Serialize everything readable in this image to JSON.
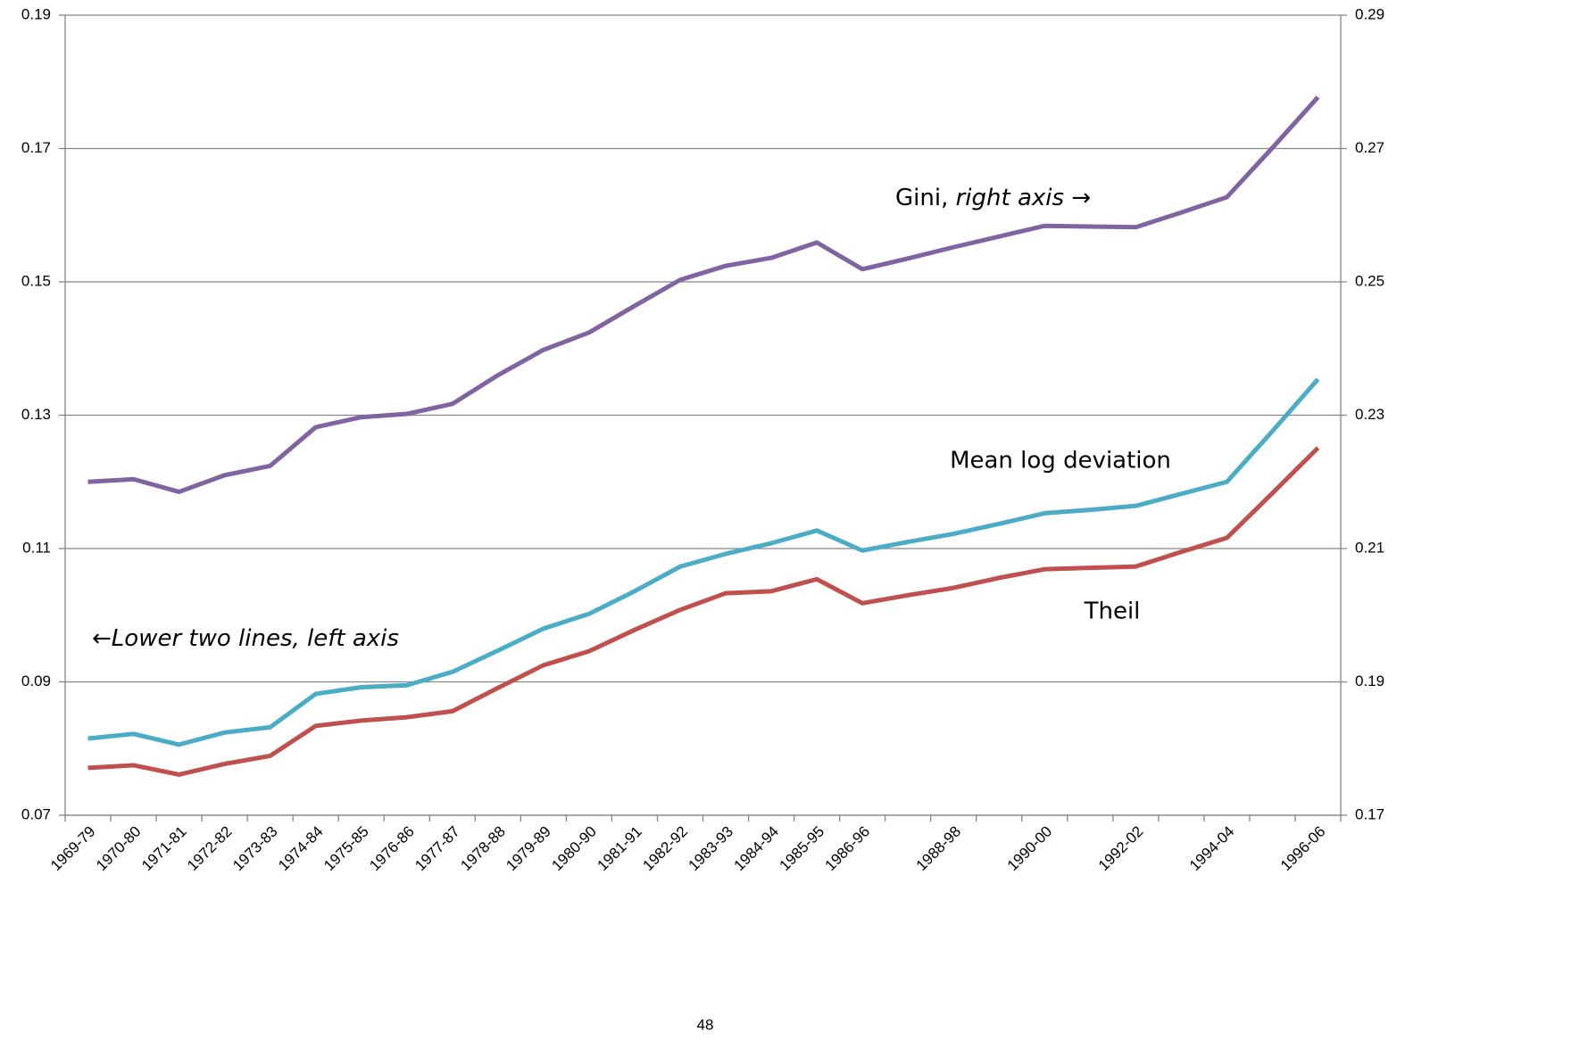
{
  "chart_data": {
    "type": "line",
    "categories": [
      "1969-79",
      "1970-80",
      "1971-81",
      "1972-82",
      "1973-83",
      "1974-84",
      "1975-85",
      "1976-86",
      "1977-87",
      "1978-88",
      "1979-89",
      "1980-90",
      "1981-91",
      "1982-92",
      "1983-93",
      "1984-94",
      "1985-95",
      "1986-96",
      null,
      "1988-98",
      null,
      "1990-00",
      null,
      "1992-02",
      null,
      "1994-04",
      null,
      "1996-06"
    ],
    "series": [
      {
        "name": "Gini",
        "color": "#8064a2",
        "axis": "y2",
        "values": [
          0.22,
          0.2204,
          0.2185,
          0.221,
          0.2224,
          0.2282,
          0.2297,
          0.2302,
          0.2317,
          0.236,
          0.2398,
          0.2424,
          0.2464,
          0.2503,
          0.2524,
          0.2536,
          0.2559,
          0.2519,
          0.2535,
          0.2552,
          0.2568,
          0.2584,
          0.2583,
          0.2582,
          0.2604,
          0.2627,
          0.2701,
          0.2777
        ]
      },
      {
        "name": "Mean log deviation",
        "color": "#4bacc6",
        "values": [
          0.0815,
          0.0822,
          0.0806,
          0.0824,
          0.0832,
          0.0882,
          0.0892,
          0.0895,
          0.0915,
          0.0947,
          0.098,
          0.1002,
          0.1036,
          0.1073,
          0.1092,
          0.1108,
          0.1127,
          0.1097,
          0.111,
          0.1122,
          0.1137,
          0.1153,
          0.1158,
          0.1164,
          0.1182,
          0.12,
          0.1276,
          0.1354
        ]
      },
      {
        "name": "Theil",
        "color": "#c0504d",
        "values": [
          0.0771,
          0.0775,
          0.0761,
          0.0777,
          0.0789,
          0.0834,
          0.0842,
          0.0847,
          0.0856,
          0.0891,
          0.0925,
          0.0946,
          0.0978,
          0.1008,
          0.1033,
          0.1036,
          0.1054,
          0.1018,
          0.103,
          0.1041,
          0.1056,
          0.1069,
          0.1071,
          0.1073,
          0.1095,
          0.1116,
          0.1183,
          0.1251
        ]
      }
    ],
    "ylim": [
      0.07,
      0.19
    ],
    "yticks": [
      0.07,
      0.09,
      0.11,
      0.13,
      0.15,
      0.17,
      0.19
    ],
    "y2lim": [
      0.17,
      0.29
    ],
    "y2ticks": [
      0.17,
      0.19,
      0.21,
      0.23,
      0.25,
      0.27,
      0.29
    ],
    "grid": true,
    "gini_note": {
      "text": "Gini,",
      "italic": "right axis",
      "arrow": "→"
    },
    "left_note": {
      "arrow": "←",
      "italic": "Lower two lines, left axis"
    },
    "page_number": "48"
  }
}
